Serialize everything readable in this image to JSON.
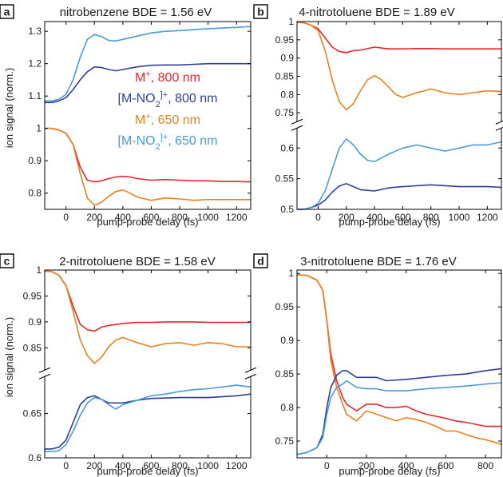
{
  "colors": {
    "red_m_800": "#e8252b",
    "navy_mno2_800": "#2e3f98",
    "orange_m_650": "#e8811f",
    "blue_mno2_650": "#4a9bd6"
  },
  "chart_data": [
    {
      "panel": "a",
      "type": "line",
      "title": "nitrobenzene BDE = 1.56 eV",
      "xlabel": "pump-probe delay (fs)",
      "ylabel": "ion signal (norm.)",
      "xlim": [
        -150,
        1300
      ],
      "ylim": [
        0.75,
        1.33
      ],
      "xticks": [
        0,
        200,
        400,
        600,
        800,
        1000,
        1200
      ],
      "yticks": [
        0.8,
        0.9,
        1,
        1.1,
        1.2,
        1.3
      ],
      "ytick_labels": [
        "0.8",
        "0.9",
        "1",
        "1.1",
        "1.2",
        "1.3"
      ],
      "legend": [
        {
          "label": "M",
          "sup": "+",
          "suffix": ", 800 nm",
          "color": "#e8252b"
        },
        {
          "label": "[M-NO",
          "sub": "2",
          "sup": "]+",
          "suffix": ", 800 nm",
          "color": "#2e3f98"
        },
        {
          "label": "M",
          "sup": "+",
          "suffix": ", 650 nm",
          "color": "#e8811f"
        },
        {
          "label": "[M-NO",
          "sub": "2",
          "sup": "]+",
          "suffix": ", 650 nm",
          "color": "#4a9bd6"
        }
      ],
      "series": [
        {
          "color_key": "red_m_800",
          "x": [
            -150,
            -100,
            -50,
            0,
            50,
            100,
            150,
            200,
            250,
            300,
            350,
            400,
            450,
            500,
            600,
            700,
            800,
            900,
            1000,
            1100,
            1200,
            1300
          ],
          "y": [
            1.0,
            1.0,
            0.995,
            0.985,
            0.95,
            0.88,
            0.84,
            0.835,
            0.838,
            0.845,
            0.85,
            0.852,
            0.85,
            0.845,
            0.84,
            0.842,
            0.84,
            0.838,
            0.838,
            0.836,
            0.836,
            0.835
          ]
        },
        {
          "color_key": "orange_m_650",
          "x": [
            -150,
            -100,
            -50,
            0,
            50,
            100,
            150,
            200,
            250,
            300,
            350,
            400,
            450,
            500,
            600,
            700,
            800,
            900,
            1000,
            1100,
            1200,
            1300
          ],
          "y": [
            1.0,
            1.0,
            0.995,
            0.985,
            0.95,
            0.86,
            0.785,
            0.762,
            0.772,
            0.79,
            0.805,
            0.81,
            0.8,
            0.788,
            0.778,
            0.785,
            0.782,
            0.778,
            0.78,
            0.78,
            0.78,
            0.78
          ]
        },
        {
          "color_key": "navy_mno2_800",
          "x": [
            -150,
            -100,
            -50,
            0,
            50,
            100,
            150,
            200,
            250,
            300,
            350,
            400,
            500,
            600,
            700,
            800,
            900,
            1000,
            1100,
            1200,
            1300
          ],
          "y": [
            1.08,
            1.08,
            1.085,
            1.095,
            1.12,
            1.15,
            1.175,
            1.19,
            1.188,
            1.182,
            1.178,
            1.182,
            1.19,
            1.195,
            1.196,
            1.196,
            1.198,
            1.2,
            1.2,
            1.2,
            1.2
          ]
        },
        {
          "color_key": "blue_mno2_650",
          "x": [
            -150,
            -100,
            -50,
            0,
            50,
            100,
            150,
            200,
            250,
            300,
            350,
            400,
            500,
            600,
            700,
            800,
            900,
            1000,
            1100,
            1200,
            1300
          ],
          "y": [
            1.085,
            1.085,
            1.09,
            1.105,
            1.15,
            1.22,
            1.275,
            1.29,
            1.283,
            1.272,
            1.27,
            1.275,
            1.285,
            1.295,
            1.3,
            1.302,
            1.305,
            1.308,
            1.31,
            1.312,
            1.315
          ]
        }
      ]
    },
    {
      "panel": "b",
      "type": "line",
      "title": "4-nitrotoluene BDE = 1.89 eV",
      "xlabel": "pump-probe delay (fs)",
      "ylabel": "",
      "xlim": [
        -150,
        1300
      ],
      "xticks": [
        0,
        200,
        400,
        600,
        800,
        1000,
        1200
      ],
      "axis_break": true,
      "upper_ylim": [
        0.73,
        1.0
      ],
      "lower_ylim": [
        0.5,
        0.63
      ],
      "upper_yticks": [
        0.75,
        0.8,
        0.85,
        0.9,
        0.95,
        1
      ],
      "upper_ytick_labels": [
        "0.75",
        "0.8",
        "0.85",
        "0.9",
        "0.95",
        "1"
      ],
      "lower_yticks": [
        0.5,
        0.55,
        0.6
      ],
      "lower_ytick_labels": [
        "0.5",
        "0.55",
        "0.6"
      ],
      "upper_series": [
        {
          "color_key": "red_m_800",
          "x": [
            -150,
            -100,
            -50,
            0,
            50,
            100,
            150,
            200,
            250,
            300,
            400,
            500,
            600,
            700,
            800,
            900,
            1000,
            1100,
            1200,
            1300
          ],
          "y": [
            0.998,
            0.997,
            0.99,
            0.98,
            0.955,
            0.93,
            0.918,
            0.915,
            0.92,
            0.922,
            0.93,
            0.925,
            0.925,
            0.926,
            0.926,
            0.925,
            0.925,
            0.925,
            0.925,
            0.925
          ]
        },
        {
          "color_key": "orange_m_650",
          "x": [
            -150,
            -100,
            -50,
            0,
            50,
            100,
            150,
            200,
            250,
            300,
            350,
            400,
            450,
            500,
            550,
            600,
            700,
            800,
            900,
            1000,
            1100,
            1200,
            1300
          ],
          "y": [
            0.998,
            0.997,
            0.99,
            0.975,
            0.92,
            0.84,
            0.78,
            0.758,
            0.775,
            0.81,
            0.84,
            0.852,
            0.84,
            0.82,
            0.8,
            0.792,
            0.805,
            0.815,
            0.805,
            0.8,
            0.805,
            0.81,
            0.808
          ]
        }
      ],
      "lower_series": [
        {
          "color_key": "navy_mno2_800",
          "x": [
            -150,
            -100,
            -50,
            0,
            50,
            100,
            150,
            200,
            250,
            300,
            400,
            500,
            600,
            800,
            1000,
            1200,
            1300
          ],
          "y": [
            0.5,
            0.5,
            0.503,
            0.507,
            0.515,
            0.528,
            0.538,
            0.542,
            0.537,
            0.532,
            0.53,
            0.535,
            0.537,
            0.54,
            0.537,
            0.537,
            0.536
          ]
        },
        {
          "color_key": "blue_mno2_650",
          "x": [
            -150,
            -100,
            -50,
            0,
            50,
            100,
            150,
            200,
            250,
            300,
            350,
            400,
            500,
            600,
            700,
            800,
            900,
            1000,
            1100,
            1200,
            1300
          ],
          "y": [
            0.5,
            0.5,
            0.503,
            0.51,
            0.53,
            0.565,
            0.6,
            0.615,
            0.605,
            0.59,
            0.58,
            0.578,
            0.59,
            0.6,
            0.605,
            0.6,
            0.595,
            0.6,
            0.605,
            0.605,
            0.61
          ]
        }
      ]
    },
    {
      "panel": "c",
      "type": "line",
      "title": "2-nitrotoluene BDE = 1.58 eV",
      "xlabel": "pump-probe delay (fs)",
      "ylabel": "ion signal (norm.)",
      "xlim": [
        -150,
        1300
      ],
      "xticks": [
        0,
        200,
        400,
        600,
        800,
        1000,
        1200
      ],
      "axis_break": true,
      "upper_ylim": [
        0.81,
        1.0
      ],
      "lower_ylim": [
        0.6,
        0.69
      ],
      "upper_yticks": [
        0.85,
        0.9,
        0.95,
        1
      ],
      "upper_ytick_labels": [
        "0.85",
        "0.9",
        "0.95",
        "1"
      ],
      "lower_yticks": [
        0.6,
        0.65
      ],
      "lower_ytick_labels": [
        "0.6",
        "0.65"
      ],
      "upper_series": [
        {
          "color_key": "red_m_800",
          "x": [
            -150,
            -100,
            -50,
            0,
            50,
            100,
            150,
            200,
            250,
            300,
            400,
            500,
            600,
            700,
            800,
            900,
            1000,
            1100,
            1200,
            1300
          ],
          "y": [
            0.998,
            0.997,
            0.99,
            0.97,
            0.93,
            0.895,
            0.885,
            0.882,
            0.89,
            0.893,
            0.897,
            0.899,
            0.899,
            0.9,
            0.9,
            0.9,
            0.899,
            0.899,
            0.899,
            0.899
          ]
        },
        {
          "color_key": "orange_m_650",
          "x": [
            -150,
            -100,
            -50,
            0,
            50,
            100,
            150,
            200,
            250,
            300,
            350,
            400,
            450,
            500,
            600,
            700,
            800,
            900,
            1000,
            1100,
            1200,
            1300
          ],
          "y": [
            0.998,
            0.997,
            0.99,
            0.97,
            0.92,
            0.865,
            0.835,
            0.82,
            0.832,
            0.852,
            0.865,
            0.87,
            0.865,
            0.86,
            0.852,
            0.858,
            0.86,
            0.855,
            0.86,
            0.858,
            0.852,
            0.852
          ]
        }
      ],
      "lower_series": [
        {
          "color_key": "navy_mno2_800",
          "x": [
            -150,
            -100,
            -50,
            0,
            50,
            100,
            150,
            200,
            250,
            300,
            400,
            500,
            600,
            800,
            1000,
            1200,
            1300
          ],
          "y": [
            0.61,
            0.61,
            0.612,
            0.62,
            0.64,
            0.66,
            0.668,
            0.67,
            0.666,
            0.662,
            0.662,
            0.665,
            0.667,
            0.668,
            0.668,
            0.67,
            0.672
          ]
        },
        {
          "color_key": "blue_mno2_650",
          "x": [
            -150,
            -100,
            -50,
            0,
            50,
            100,
            150,
            200,
            250,
            300,
            350,
            400,
            500,
            600,
            700,
            800,
            900,
            1000,
            1100,
            1200,
            1300
          ],
          "y": [
            0.607,
            0.607,
            0.608,
            0.615,
            0.63,
            0.648,
            0.662,
            0.668,
            0.666,
            0.66,
            0.655,
            0.66,
            0.665,
            0.67,
            0.672,
            0.675,
            0.677,
            0.678,
            0.68,
            0.682,
            0.68
          ]
        }
      ]
    },
    {
      "panel": "d",
      "type": "line",
      "title": "3-nitrotoluene  BDE = 1.76 eV",
      "xlabel": "pump-probe delay (fs)",
      "ylabel": "",
      "xlim": [
        -150,
        880
      ],
      "ylim": [
        0.725,
        1.005
      ],
      "xticks": [
        0,
        200,
        400,
        600,
        800
      ],
      "yticks": [
        0.75,
        0.8,
        0.85,
        0.9,
        0.95,
        1
      ],
      "ytick_labels": [
        "0.75",
        "0.8",
        "0.85",
        "0.9",
        "0.95",
        "1"
      ],
      "series": [
        {
          "color_key": "red_m_800",
          "x": [
            -150,
            -100,
            -50,
            -20,
            0,
            20,
            50,
            80,
            100,
            150,
            200,
            250,
            300,
            350,
            400,
            450,
            500,
            550,
            600,
            650,
            700,
            750,
            800,
            850,
            880
          ],
          "y": [
            0.998,
            0.997,
            0.99,
            0.975,
            0.93,
            0.88,
            0.84,
            0.815,
            0.805,
            0.795,
            0.805,
            0.805,
            0.8,
            0.8,
            0.802,
            0.795,
            0.79,
            0.787,
            0.784,
            0.78,
            0.778,
            0.775,
            0.772,
            0.772,
            0.772
          ]
        },
        {
          "color_key": "orange_m_650",
          "x": [
            -150,
            -100,
            -50,
            -20,
            0,
            20,
            50,
            80,
            100,
            150,
            200,
            250,
            300,
            350,
            400,
            450,
            500,
            550,
            600,
            650,
            700,
            750,
            800,
            850,
            880
          ],
          "y": [
            0.998,
            0.997,
            0.99,
            0.975,
            0.93,
            0.87,
            0.83,
            0.805,
            0.79,
            0.78,
            0.795,
            0.79,
            0.785,
            0.78,
            0.785,
            0.782,
            0.778,
            0.772,
            0.765,
            0.765,
            0.76,
            0.755,
            0.752,
            0.748,
            0.745
          ]
        },
        {
          "color_key": "navy_mno2_800",
          "x": [
            -150,
            -100,
            -50,
            -20,
            0,
            20,
            50,
            80,
            100,
            150,
            200,
            250,
            300,
            400,
            500,
            600,
            700,
            800,
            880
          ],
          "y": [
            0.73,
            0.733,
            0.74,
            0.76,
            0.8,
            0.83,
            0.848,
            0.855,
            0.855,
            0.845,
            0.845,
            0.845,
            0.84,
            0.842,
            0.845,
            0.848,
            0.85,
            0.855,
            0.858
          ]
        },
        {
          "color_key": "blue_mno2_650",
          "x": [
            -150,
            -100,
            -50,
            -20,
            0,
            20,
            50,
            80,
            100,
            150,
            200,
            250,
            300,
            400,
            500,
            600,
            700,
            800,
            880
          ],
          "y": [
            0.73,
            0.733,
            0.74,
            0.755,
            0.79,
            0.815,
            0.83,
            0.835,
            0.84,
            0.83,
            0.828,
            0.828,
            0.825,
            0.825,
            0.828,
            0.83,
            0.832,
            0.835,
            0.837
          ]
        }
      ]
    }
  ]
}
